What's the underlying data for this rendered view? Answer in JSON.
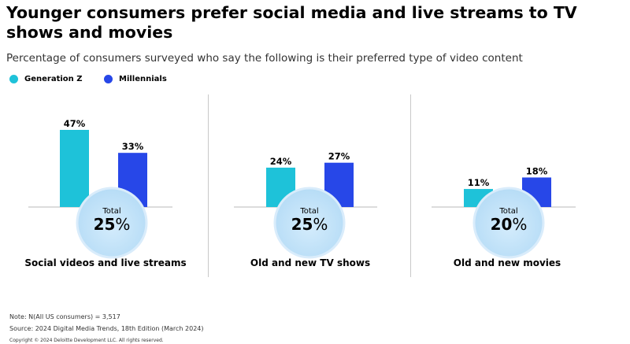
{
  "header": {
    "title": "Younger consumers prefer social media and live streams to TV shows and movies",
    "subtitle": "Percentage of consumers surveyed who say the following is their preferred type of video content"
  },
  "colors": {
    "gen_z": "#1ec2d9",
    "millennials": "#2747e8",
    "circle_fill": "#b6dcf6",
    "circle_stroke": "#d9ecfb"
  },
  "chart_data": {
    "type": "bar",
    "categories": [
      "Social videos and live streams",
      "Old and new TV shows",
      "Old and new movies"
    ],
    "series": [
      {
        "name": "Generation Z",
        "values": [
          47,
          24,
          11
        ],
        "labels": [
          "47%",
          "24%",
          "11%"
        ]
      },
      {
        "name": "Millennials",
        "values": [
          33,
          27,
          18
        ],
        "labels": [
          "33%",
          "27%",
          "18%"
        ]
      }
    ],
    "totals": [
      {
        "label": "Total",
        "value": "25",
        "unit": "%"
      },
      {
        "label": "Total",
        "value": "25",
        "unit": "%"
      },
      {
        "label": "Total",
        "value": "20",
        "unit": "%"
      }
    ],
    "title": "",
    "xlabel": "",
    "ylabel": "",
    "ylim": [
      0,
      47
    ],
    "legend": "top-left",
    "grid": false
  },
  "footer": {
    "note": "Note: N(All US consumers) = 3,517",
    "source": "Source: 2024 Digital Media Trends, 18th Edition (March 2024)",
    "copyright": "Copyright © 2024 Deloitte Development LLC. All rights reserved."
  }
}
